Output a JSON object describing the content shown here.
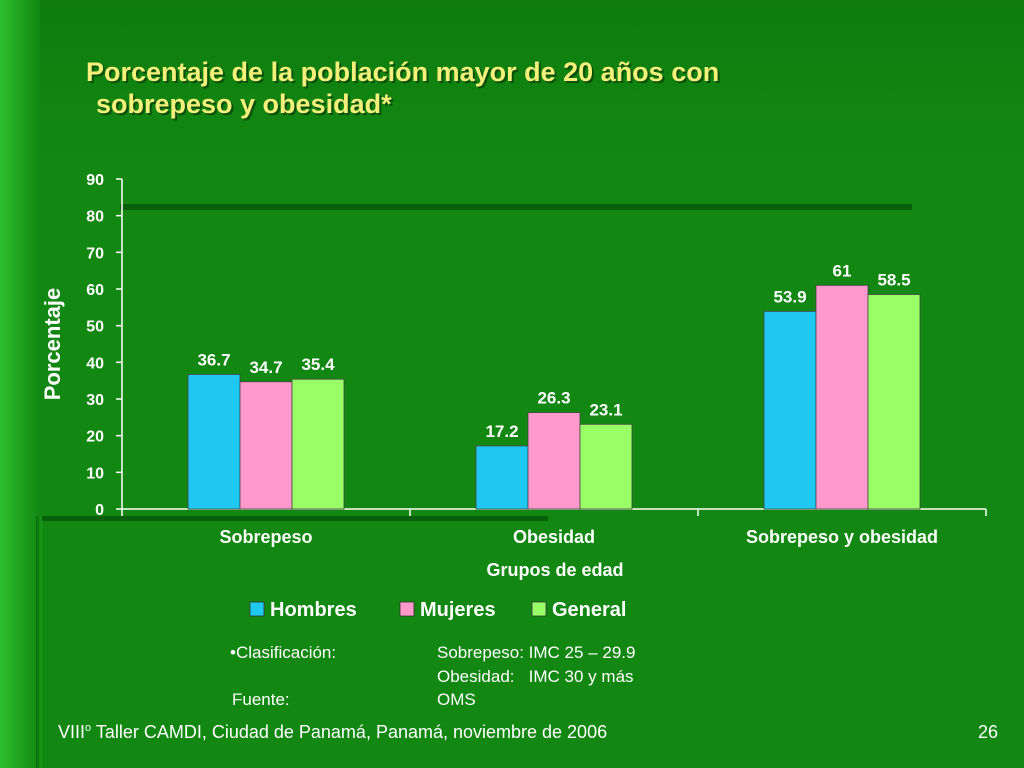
{
  "slide": {
    "title_line1": "Porcentaje de la población mayor de 20 años con",
    "title_line2": "sobrepeso y obesidad*",
    "footer_prefix": "VIII",
    "footer_sup": "o",
    "footer_rest": " Taller CAMDI, Ciudad de Panamá, Panamá, noviembre de 2006",
    "page_number": "26"
  },
  "notes": {
    "clasificacion_label": "•Clasificación:",
    "sobrepeso_def": "Sobrepeso: IMC 25 – 29.9",
    "obesidad_def": "Obesidad:   IMC 30 y más",
    "fuente_label": "Fuente:",
    "fuente_value": "OMS"
  },
  "colors": {
    "hombres": "#1ec8f0",
    "mujeres": "#ff99cc",
    "general": "#99ff66",
    "axis": "#ffffff",
    "text": "#ffffff"
  },
  "chart_data": {
    "type": "bar",
    "title": "",
    "xlabel": "Grupos de edad",
    "ylabel": "Porcentaje",
    "ylim": [
      0,
      90
    ],
    "yticks": [
      "0",
      "10",
      "20",
      "30",
      "40",
      "50",
      "60",
      "70",
      "80",
      "90"
    ],
    "categories": [
      "Sobrepeso",
      "Obesidad",
      "Sobrepeso y obesidad"
    ],
    "series": [
      {
        "name": "Hombres",
        "values": [
          36.7,
          17.2,
          53.9
        ],
        "labels": [
          "36.7",
          "17.2",
          "53.9"
        ]
      },
      {
        "name": "Mujeres",
        "values": [
          34.7,
          26.3,
          61
        ],
        "labels": [
          "34.7",
          "26.3",
          "61"
        ]
      },
      {
        "name": "General",
        "values": [
          35.4,
          23.1,
          58.5
        ],
        "labels": [
          "35.4",
          "23.1",
          "58.5"
        ]
      }
    ],
    "legend": "bottom"
  }
}
